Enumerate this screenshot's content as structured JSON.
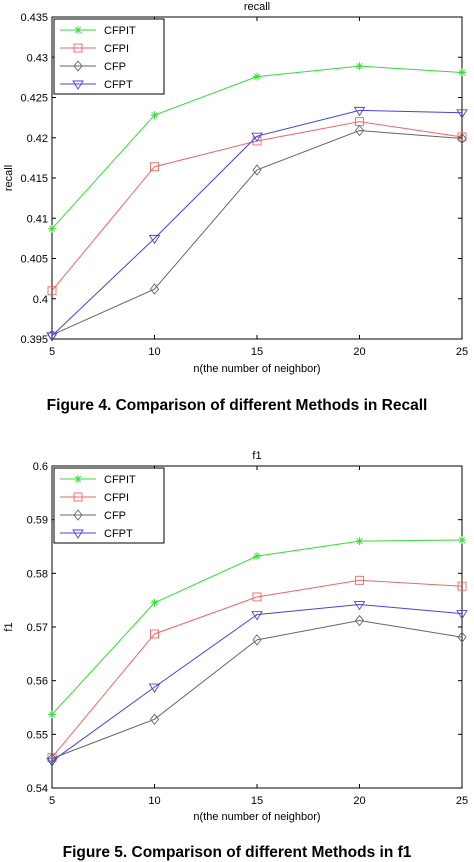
{
  "captions": [
    "Figure 4. Comparison of different Methods in Recall",
    "Figure 5. Comparison of different Methods in f1"
  ],
  "legend_series": [
    {
      "name": "CFPIT",
      "color": "#33dd33",
      "marker": "star"
    },
    {
      "name": "CFPI",
      "color": "#ee6666",
      "marker": "square"
    },
    {
      "name": "CFP",
      "color": "#666666",
      "marker": "diamond"
    },
    {
      "name": "CFPT",
      "color": "#4444dd",
      "marker": "triangle-down"
    }
  ],
  "chart_data": [
    {
      "type": "line",
      "title": "recall",
      "xlabel": "n(the number of neighbor)",
      "ylabel": "recall",
      "xlim": [
        5,
        25
      ],
      "ylim": [
        0.395,
        0.435
      ],
      "xticks": [
        5,
        10,
        15,
        20,
        25
      ],
      "xtick_labels": [
        "5",
        "10",
        "15",
        "20",
        "25"
      ],
      "yticks": [
        0.395,
        0.4,
        0.405,
        0.41,
        0.415,
        0.42,
        0.425,
        0.43,
        0.435
      ],
      "ytick_labels": [
        "0.395",
        "0.4",
        "0.405",
        "0.41",
        "0.415",
        "0.42",
        "0.425",
        "0.43",
        "0.435"
      ],
      "grid": false,
      "legend_position": "top-left",
      "x": [
        5,
        10,
        15,
        20,
        25
      ],
      "series": [
        {
          "name": "CFPIT",
          "values": [
            0.4087,
            0.4228,
            0.4276,
            0.4289,
            0.4281
          ]
        },
        {
          "name": "CFPI",
          "values": [
            0.401,
            0.4164,
            0.4196,
            0.422,
            0.4201
          ]
        },
        {
          "name": "CFP",
          "values": [
            0.3955,
            0.4012,
            0.416,
            0.4209,
            0.4199
          ]
        },
        {
          "name": "CFPT",
          "values": [
            0.3954,
            0.4075,
            0.4202,
            0.4234,
            0.4231
          ]
        }
      ]
    },
    {
      "type": "line",
      "title": "f1",
      "xlabel": "n(the number of neighbor)",
      "ylabel": "f1",
      "xlim": [
        5,
        25
      ],
      "ylim": [
        0.54,
        0.6
      ],
      "xticks": [
        5,
        10,
        15,
        20,
        25
      ],
      "xtick_labels": [
        "5",
        "10",
        "15",
        "20",
        "25"
      ],
      "yticks": [
        0.54,
        0.55,
        0.56,
        0.57,
        0.58,
        0.59,
        0.6
      ],
      "ytick_labels": [
        "0.54",
        "0.55",
        "0.56",
        "0.57",
        "0.58",
        "0.59",
        "0.6"
      ],
      "grid": false,
      "legend_position": "top-left",
      "x": [
        5,
        10,
        15,
        20,
        25
      ],
      "series": [
        {
          "name": "CFPIT",
          "values": [
            0.5537,
            0.5745,
            0.5832,
            0.586,
            0.5862
          ]
        },
        {
          "name": "CFPI",
          "values": [
            0.5457,
            0.5687,
            0.5756,
            0.5787,
            0.5776
          ]
        },
        {
          "name": "CFP",
          "values": [
            0.5455,
            0.5528,
            0.5676,
            0.5712,
            0.5681
          ]
        },
        {
          "name": "CFPT",
          "values": [
            0.545,
            0.5588,
            0.5723,
            0.5742,
            0.5725
          ]
        }
      ]
    }
  ]
}
